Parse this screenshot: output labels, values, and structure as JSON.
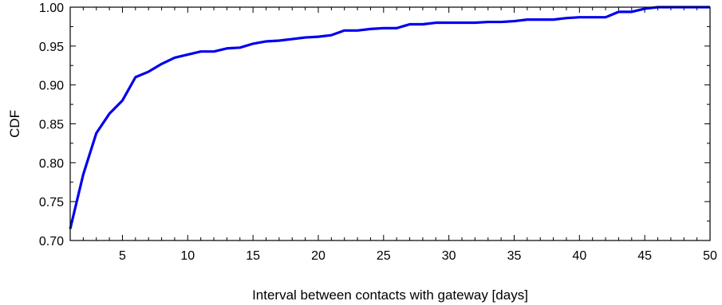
{
  "chart_data": {
    "type": "line",
    "title": "",
    "xlabel": "Interval between contacts with gateway [days]",
    "ylabel": "CDF",
    "xlim": [
      1,
      50
    ],
    "ylim": [
      0.7,
      1.0
    ],
    "x_ticks": [
      5,
      10,
      15,
      20,
      25,
      30,
      35,
      40,
      45,
      50
    ],
    "y_ticks": [
      0.7,
      0.75,
      0.8,
      0.85,
      0.9,
      0.95,
      1.0
    ],
    "x_tick_labels": [
      "5",
      "10",
      "15",
      "20",
      "25",
      "30",
      "35",
      "40",
      "45",
      "50"
    ],
    "y_tick_labels": [
      "0.70",
      "0.75",
      "0.80",
      "0.85",
      "0.90",
      "0.95",
      "1.00"
    ],
    "grid": false,
    "legend": "none",
    "series": [
      {
        "color": "#0000ee",
        "x": [
          1,
          2,
          3,
          4,
          5,
          6,
          7,
          8,
          9,
          10,
          11,
          12,
          13,
          14,
          15,
          16,
          17,
          18,
          19,
          20,
          21,
          22,
          23,
          24,
          25,
          26,
          27,
          28,
          29,
          30,
          31,
          32,
          33,
          34,
          35,
          36,
          37,
          38,
          39,
          40,
          41,
          42,
          43,
          44,
          45,
          46,
          47,
          48,
          49,
          50
        ],
        "y": [
          0.715,
          0.785,
          0.838,
          0.863,
          0.88,
          0.91,
          0.917,
          0.927,
          0.935,
          0.939,
          0.943,
          0.943,
          0.947,
          0.948,
          0.953,
          0.956,
          0.957,
          0.959,
          0.961,
          0.962,
          0.964,
          0.97,
          0.97,
          0.972,
          0.973,
          0.973,
          0.978,
          0.978,
          0.98,
          0.98,
          0.98,
          0.98,
          0.981,
          0.981,
          0.982,
          0.984,
          0.984,
          0.984,
          0.986,
          0.987,
          0.987,
          0.987,
          0.994,
          0.994,
          0.998,
          1.0,
          1.0,
          1.0,
          1.0,
          1.0
        ]
      }
    ]
  }
}
